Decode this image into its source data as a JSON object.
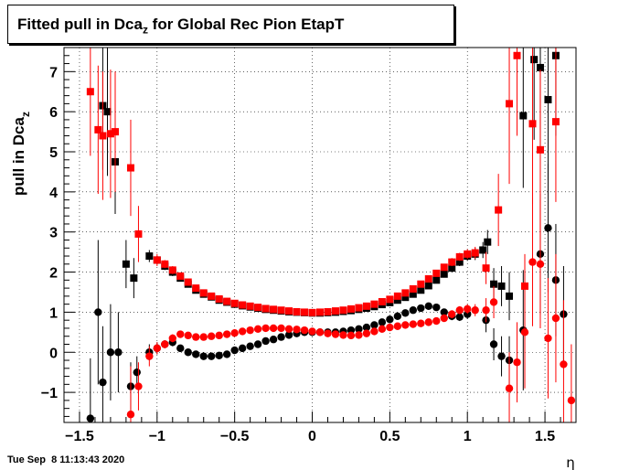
{
  "chart_data": {
    "type": "scatter",
    "title": "Fitted pull in Dca",
    "title_subscript": "z",
    "title_suffix": " for Global Rec Pion EtapT",
    "ylabel": "pull in Dca",
    "ylabel_subscript": "z",
    "xlabel": "η",
    "xlim": [
      -1.6,
      1.7
    ],
    "ylim": [
      -1.75,
      7.6
    ],
    "x_ticks": [
      -1.5,
      -1,
      -0.5,
      0,
      0.5,
      1,
      1.5
    ],
    "x_tick_labels": [
      "−1.5",
      "−1",
      "−0.5",
      "0",
      "0.5",
      "1",
      "1.5"
    ],
    "y_ticks": [
      -1,
      0,
      1,
      2,
      3,
      4,
      5,
      6,
      7
    ],
    "y_tick_labels": [
      "−1",
      "0",
      "1",
      "2",
      "3",
      "4",
      "5",
      "6",
      "7"
    ],
    "grid": true,
    "colors": {
      "black": "#000000",
      "red": "#ff0000"
    },
    "series": [
      {
        "color": "#000000",
        "marker": "square",
        "points": [
          [
            -1.35,
            6.15,
            1.6
          ],
          [
            -1.32,
            6.0,
            1.6
          ],
          [
            -1.27,
            4.75,
            1.3
          ],
          [
            -1.2,
            2.2,
            0.6
          ],
          [
            -1.15,
            1.85,
            0.5
          ],
          [
            -1.05,
            2.4,
            0.15
          ],
          [
            -1.0,
            2.3,
            0.1
          ],
          [
            -0.95,
            2.15,
            0.1
          ],
          [
            -0.9,
            2.0,
            0.1
          ],
          [
            -0.85,
            1.85,
            0.08
          ],
          [
            -0.8,
            1.7,
            0.08
          ],
          [
            -0.75,
            1.55,
            0.06
          ],
          [
            -0.7,
            1.45,
            0.06
          ],
          [
            -0.65,
            1.38,
            0.05
          ],
          [
            -0.6,
            1.3,
            0.05
          ],
          [
            -0.55,
            1.25,
            0.05
          ],
          [
            -0.5,
            1.2,
            0.05
          ],
          [
            -0.45,
            1.16,
            0.05
          ],
          [
            -0.4,
            1.13,
            0.05
          ],
          [
            -0.35,
            1.1,
            0.05
          ],
          [
            -0.3,
            1.07,
            0.05
          ],
          [
            -0.25,
            1.05,
            0.05
          ],
          [
            -0.2,
            1.03,
            0.05
          ],
          [
            -0.15,
            1.01,
            0.05
          ],
          [
            -0.1,
            1.0,
            0.05
          ],
          [
            -0.05,
            0.99,
            0.05
          ],
          [
            0.0,
            0.98,
            0.05
          ],
          [
            0.05,
            0.98,
            0.05
          ],
          [
            0.1,
            0.99,
            0.05
          ],
          [
            0.15,
            1.0,
            0.05
          ],
          [
            0.2,
            1.02,
            0.05
          ],
          [
            0.25,
            1.04,
            0.05
          ],
          [
            0.3,
            1.07,
            0.05
          ],
          [
            0.35,
            1.1,
            0.05
          ],
          [
            0.4,
            1.14,
            0.05
          ],
          [
            0.45,
            1.19,
            0.05
          ],
          [
            0.5,
            1.24,
            0.05
          ],
          [
            0.55,
            1.3,
            0.05
          ],
          [
            0.6,
            1.37,
            0.05
          ],
          [
            0.65,
            1.45,
            0.06
          ],
          [
            0.7,
            1.55,
            0.06
          ],
          [
            0.75,
            1.66,
            0.07
          ],
          [
            0.8,
            1.8,
            0.08
          ],
          [
            0.85,
            1.95,
            0.08
          ],
          [
            0.9,
            2.1,
            0.1
          ],
          [
            0.95,
            2.25,
            0.1
          ],
          [
            1.0,
            2.4,
            0.12
          ],
          [
            1.05,
            2.45,
            0.15
          ],
          [
            1.1,
            2.55,
            0.2
          ],
          [
            1.13,
            2.75,
            0.3
          ],
          [
            1.17,
            1.7,
            0.4
          ],
          [
            1.22,
            1.65,
            0.5
          ],
          [
            1.27,
            1.4,
            0.6
          ],
          [
            1.36,
            5.9,
            1.8
          ],
          [
            1.43,
            7.3,
            2.0
          ],
          [
            1.47,
            7.1,
            2.0
          ],
          [
            1.52,
            6.3,
            2.0
          ],
          [
            1.57,
            7.4,
            2.0
          ]
        ]
      },
      {
        "color": "#000000",
        "marker": "circle",
        "points": [
          [
            -1.43,
            -1.65,
            1.5
          ],
          [
            -1.38,
            1.0,
            1.8
          ],
          [
            -1.35,
            -0.75,
            1.4
          ],
          [
            -1.3,
            0.0,
            1.2
          ],
          [
            -1.25,
            0.0,
            1.0
          ],
          [
            -1.17,
            -0.85,
            0.6
          ],
          [
            -1.13,
            -0.5,
            0.4
          ],
          [
            -1.05,
            0.0,
            0.2
          ],
          [
            -1.0,
            0.1,
            0.15
          ],
          [
            -0.95,
            0.2,
            0.1
          ],
          [
            -0.9,
            0.25,
            0.1
          ],
          [
            -0.85,
            0.1,
            0.08
          ],
          [
            -0.8,
            0.0,
            0.08
          ],
          [
            -0.75,
            -0.05,
            0.06
          ],
          [
            -0.7,
            -0.1,
            0.06
          ],
          [
            -0.65,
            -0.1,
            0.05
          ],
          [
            -0.6,
            -0.08,
            0.05
          ],
          [
            -0.55,
            -0.05,
            0.05
          ],
          [
            -0.5,
            0.05,
            0.05
          ],
          [
            -0.45,
            0.1,
            0.05
          ],
          [
            -0.4,
            0.15,
            0.05
          ],
          [
            -0.35,
            0.2,
            0.05
          ],
          [
            -0.3,
            0.28,
            0.05
          ],
          [
            -0.25,
            0.32,
            0.05
          ],
          [
            -0.2,
            0.38,
            0.05
          ],
          [
            -0.15,
            0.43,
            0.05
          ],
          [
            -0.1,
            0.47,
            0.05
          ],
          [
            -0.05,
            0.5,
            0.05
          ],
          [
            0.0,
            0.5,
            0.05
          ],
          [
            0.05,
            0.5,
            0.05
          ],
          [
            0.1,
            0.5,
            0.05
          ],
          [
            0.15,
            0.5,
            0.05
          ],
          [
            0.2,
            0.52,
            0.05
          ],
          [
            0.25,
            0.55,
            0.05
          ],
          [
            0.3,
            0.58,
            0.05
          ],
          [
            0.35,
            0.62,
            0.05
          ],
          [
            0.4,
            0.68,
            0.05
          ],
          [
            0.45,
            0.75,
            0.05
          ],
          [
            0.5,
            0.82,
            0.05
          ],
          [
            0.55,
            0.9,
            0.05
          ],
          [
            0.6,
            0.98,
            0.05
          ],
          [
            0.65,
            1.05,
            0.05
          ],
          [
            0.7,
            1.1,
            0.06
          ],
          [
            0.75,
            1.15,
            0.06
          ],
          [
            0.8,
            1.12,
            0.08
          ],
          [
            0.85,
            1.0,
            0.08
          ],
          [
            0.9,
            0.9,
            0.1
          ],
          [
            0.95,
            0.88,
            0.1
          ],
          [
            1.0,
            0.95,
            0.12
          ],
          [
            1.12,
            0.8,
            0.3
          ],
          [
            1.17,
            0.2,
            0.4
          ],
          [
            1.22,
            -0.1,
            0.5
          ],
          [
            1.27,
            -0.2,
            0.6
          ],
          [
            1.36,
            0.55,
            1.5
          ],
          [
            1.47,
            2.45,
            1.5
          ],
          [
            1.52,
            3.1,
            1.6
          ],
          [
            1.57,
            1.8,
            1.4
          ],
          [
            1.62,
            0.95,
            1.2
          ]
        ]
      },
      {
        "color": "#ff0000",
        "marker": "square",
        "points": [
          [
            -1.43,
            6.5,
            1.6
          ],
          [
            -1.38,
            5.55,
            1.6
          ],
          [
            -1.35,
            5.4,
            1.6
          ],
          [
            -1.3,
            5.45,
            1.6
          ],
          [
            -1.27,
            5.5,
            1.5
          ],
          [
            -1.17,
            4.6,
            1.2
          ],
          [
            -1.12,
            2.95,
            0.7
          ],
          [
            -1.0,
            2.3,
            0.15
          ],
          [
            -0.95,
            2.2,
            0.1
          ],
          [
            -0.9,
            2.05,
            0.1
          ],
          [
            -0.85,
            1.9,
            0.08
          ],
          [
            -0.8,
            1.75,
            0.08
          ],
          [
            -0.75,
            1.6,
            0.06
          ],
          [
            -0.7,
            1.48,
            0.06
          ],
          [
            -0.65,
            1.4,
            0.05
          ],
          [
            -0.6,
            1.33,
            0.05
          ],
          [
            -0.55,
            1.27,
            0.05
          ],
          [
            -0.5,
            1.22,
            0.05
          ],
          [
            -0.45,
            1.18,
            0.05
          ],
          [
            -0.4,
            1.15,
            0.05
          ],
          [
            -0.35,
            1.12,
            0.05
          ],
          [
            -0.3,
            1.09,
            0.05
          ],
          [
            -0.25,
            1.07,
            0.05
          ],
          [
            -0.2,
            1.05,
            0.05
          ],
          [
            -0.15,
            1.03,
            0.05
          ],
          [
            -0.1,
            1.01,
            0.05
          ],
          [
            -0.05,
            1.0,
            0.05
          ],
          [
            0.0,
            0.99,
            0.05
          ],
          [
            0.05,
            1.0,
            0.05
          ],
          [
            0.1,
            1.01,
            0.05
          ],
          [
            0.15,
            1.03,
            0.05
          ],
          [
            0.2,
            1.05,
            0.05
          ],
          [
            0.25,
            1.08,
            0.05
          ],
          [
            0.3,
            1.11,
            0.05
          ],
          [
            0.35,
            1.15,
            0.05
          ],
          [
            0.4,
            1.2,
            0.05
          ],
          [
            0.45,
            1.26,
            0.05
          ],
          [
            0.5,
            1.32,
            0.05
          ],
          [
            0.55,
            1.4,
            0.05
          ],
          [
            0.6,
            1.48,
            0.05
          ],
          [
            0.65,
            1.58,
            0.06
          ],
          [
            0.7,
            1.7,
            0.06
          ],
          [
            0.75,
            1.83,
            0.07
          ],
          [
            0.8,
            1.97,
            0.08
          ],
          [
            0.85,
            2.12,
            0.08
          ],
          [
            0.9,
            2.25,
            0.1
          ],
          [
            0.95,
            2.38,
            0.1
          ],
          [
            1.0,
            2.45,
            0.12
          ],
          [
            1.05,
            2.48,
            0.15
          ],
          [
            1.12,
            2.1,
            0.4
          ],
          [
            1.2,
            3.55,
            0.9
          ],
          [
            1.27,
            6.2,
            2.0
          ],
          [
            1.32,
            7.4,
            2.0
          ],
          [
            1.37,
            1.65,
            0.8
          ],
          [
            1.42,
            5.7,
            2.0
          ],
          [
            1.47,
            5.05,
            2.0
          ],
          [
            1.57,
            5.75,
            2.0
          ]
        ]
      },
      {
        "color": "#ff0000",
        "marker": "circle",
        "points": [
          [
            -1.17,
            -1.55,
            1.2
          ],
          [
            -1.12,
            -0.85,
            0.6
          ],
          [
            -1.05,
            -0.1,
            0.25
          ],
          [
            -1.0,
            0.1,
            0.15
          ],
          [
            -0.95,
            0.2,
            0.1
          ],
          [
            -0.9,
            0.35,
            0.1
          ],
          [
            -0.85,
            0.45,
            0.08
          ],
          [
            -0.8,
            0.42,
            0.08
          ],
          [
            -0.75,
            0.38,
            0.06
          ],
          [
            -0.7,
            0.38,
            0.06
          ],
          [
            -0.65,
            0.4,
            0.05
          ],
          [
            -0.6,
            0.42,
            0.05
          ],
          [
            -0.55,
            0.45,
            0.05
          ],
          [
            -0.5,
            0.48,
            0.05
          ],
          [
            -0.45,
            0.52,
            0.05
          ],
          [
            -0.4,
            0.55,
            0.05
          ],
          [
            -0.35,
            0.58,
            0.05
          ],
          [
            -0.3,
            0.6,
            0.05
          ],
          [
            -0.25,
            0.6,
            0.05
          ],
          [
            -0.2,
            0.6,
            0.05
          ],
          [
            -0.15,
            0.58,
            0.05
          ],
          [
            -0.1,
            0.57,
            0.05
          ],
          [
            -0.05,
            0.55,
            0.05
          ],
          [
            0.0,
            0.52,
            0.05
          ],
          [
            0.05,
            0.5,
            0.05
          ],
          [
            0.1,
            0.47,
            0.05
          ],
          [
            0.15,
            0.45,
            0.05
          ],
          [
            0.2,
            0.43,
            0.05
          ],
          [
            0.25,
            0.42,
            0.05
          ],
          [
            0.3,
            0.43,
            0.05
          ],
          [
            0.35,
            0.47,
            0.05
          ],
          [
            0.4,
            0.52,
            0.05
          ],
          [
            0.45,
            0.58,
            0.05
          ],
          [
            0.5,
            0.62,
            0.05
          ],
          [
            0.55,
            0.65,
            0.05
          ],
          [
            0.6,
            0.68,
            0.05
          ],
          [
            0.65,
            0.7,
            0.05
          ],
          [
            0.7,
            0.72,
            0.06
          ],
          [
            0.75,
            0.75,
            0.06
          ],
          [
            0.8,
            0.78,
            0.08
          ],
          [
            0.85,
            0.85,
            0.08
          ],
          [
            0.9,
            0.95,
            0.1
          ],
          [
            0.95,
            1.05,
            0.1
          ],
          [
            1.0,
            1.08,
            0.12
          ],
          [
            1.05,
            1.05,
            0.15
          ],
          [
            1.12,
            1.05,
            0.3
          ],
          [
            1.17,
            1.25,
            0.4
          ],
          [
            1.27,
            -0.9,
            0.9
          ],
          [
            1.32,
            -0.25,
            1.0
          ],
          [
            1.37,
            0.5,
            1.4
          ],
          [
            1.42,
            2.25,
            1.6
          ],
          [
            1.47,
            2.2,
            1.6
          ],
          [
            1.52,
            0.35,
            1.5
          ],
          [
            1.57,
            0.85,
            1.6
          ],
          [
            1.62,
            -0.3,
            1.6
          ],
          [
            1.67,
            -1.2,
            1.4
          ]
        ]
      }
    ]
  },
  "footer": {
    "timestamp": "Tue Sep  8 11:13:43 2020"
  }
}
